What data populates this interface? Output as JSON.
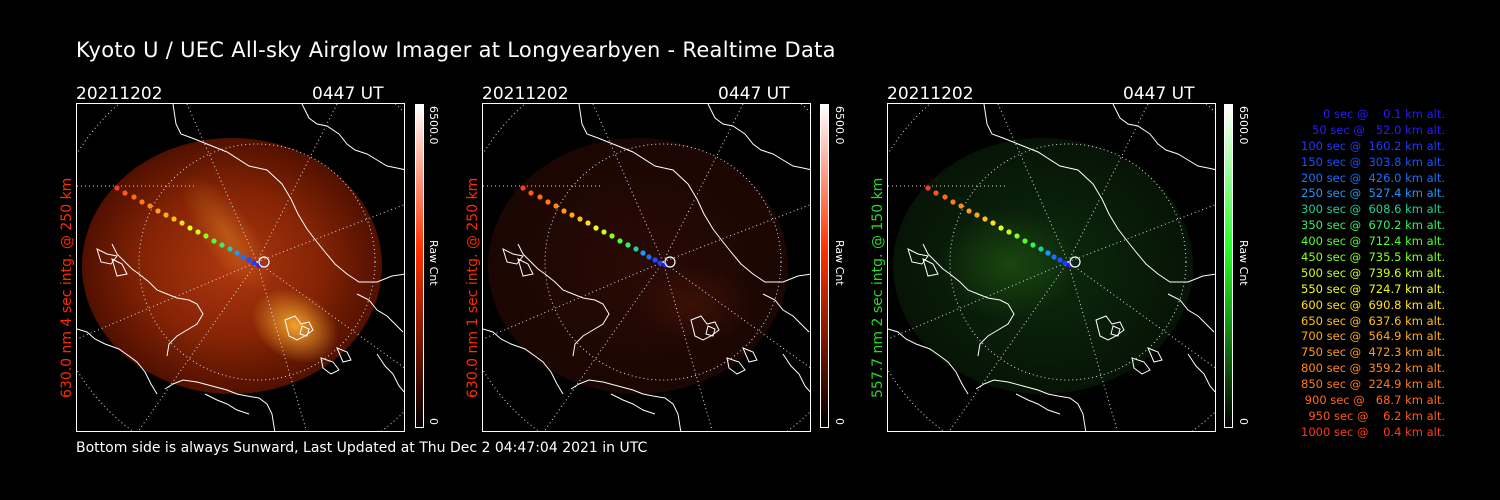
{
  "title": "Kyoto U / UEC All-sky Airglow Imager at Longyearbyen - Realtime Data",
  "footer": "Bottom side is always Sunward, Last Updated at Thu Dec  2 04:47:04 2021 in UTC",
  "panels": [
    {
      "date": "20211202",
      "time": "0447 UT",
      "side_label": "630.0 nm 4 sec intg. @ 250 km",
      "label_color": "#ff2a00",
      "cbar_max": "6500.0",
      "cbar_unit": "Raw Cnt",
      "cbar_min": "0",
      "cbar_color": "#ff3000",
      "glow": "strong-red"
    },
    {
      "date": "20211202",
      "time": "0447 UT",
      "side_label": "630.0 nm 1 sec intg. @ 250 km",
      "label_color": "#ff2a00",
      "cbar_max": "6500.0",
      "cbar_unit": "Raw Cnt",
      "cbar_min": "0",
      "cbar_color": "#ff3000",
      "glow": "faint-red"
    },
    {
      "date": "20211202",
      "time": "0447 UT",
      "side_label": "557.7 nm 2 sec intg. @ 150 km",
      "label_color": "#22dd22",
      "cbar_max": "6500.0",
      "cbar_unit": "Raw Cnt",
      "cbar_min": "0",
      "cbar_color": "#22ff22",
      "glow": "faint-green"
    }
  ],
  "legend": [
    {
      "text": "   0 sec @    0.1 km alt.",
      "color": "#2a1aff"
    },
    {
      "text": "  50 sec @   52.0 km alt.",
      "color": "#2a1aff"
    },
    {
      "text": " 100 sec @  160.2 km alt.",
      "color": "#1a3cff"
    },
    {
      "text": " 150 sec @  303.8 km alt.",
      "color": "#1a50ff"
    },
    {
      "text": " 200 sec @  426.0 km alt.",
      "color": "#1a70ff"
    },
    {
      "text": " 250 sec @  527.4 km alt.",
      "color": "#1a9aff"
    },
    {
      "text": " 300 sec @  608.6 km alt.",
      "color": "#1ad29a"
    },
    {
      "text": " 350 sec @  670.2 km alt.",
      "color": "#36f060"
    },
    {
      "text": " 400 sec @  712.4 km alt.",
      "color": "#50ff30"
    },
    {
      "text": " 450 sec @  735.5 km alt.",
      "color": "#8aff1a"
    },
    {
      "text": " 500 sec @  739.6 km alt.",
      "color": "#c8ff1a"
    },
    {
      "text": " 550 sec @  724.7 km alt.",
      "color": "#f0ff1a"
    },
    {
      "text": " 600 sec @  690.8 km alt.",
      "color": "#ffe01a"
    },
    {
      "text": " 650 sec @  637.6 km alt.",
      "color": "#ffc01a"
    },
    {
      "text": " 700 sec @  564.9 km alt.",
      "color": "#ffa81a"
    },
    {
      "text": " 750 sec @  472.3 km alt.",
      "color": "#ff9a1a"
    },
    {
      "text": " 800 sec @  359.2 km alt.",
      "color": "#ff8a1a"
    },
    {
      "text": " 850 sec @  224.9 km alt.",
      "color": "#ff7a1a"
    },
    {
      "text": " 900 sec @   68.7 km alt.",
      "color": "#ff6a1a"
    },
    {
      "text": " 950 sec @    6.2 km alt.",
      "color": "#ff5a1a"
    },
    {
      "text": "1000 sec @    0.4 km alt.",
      "color": "#ff3a1a"
    }
  ]
}
